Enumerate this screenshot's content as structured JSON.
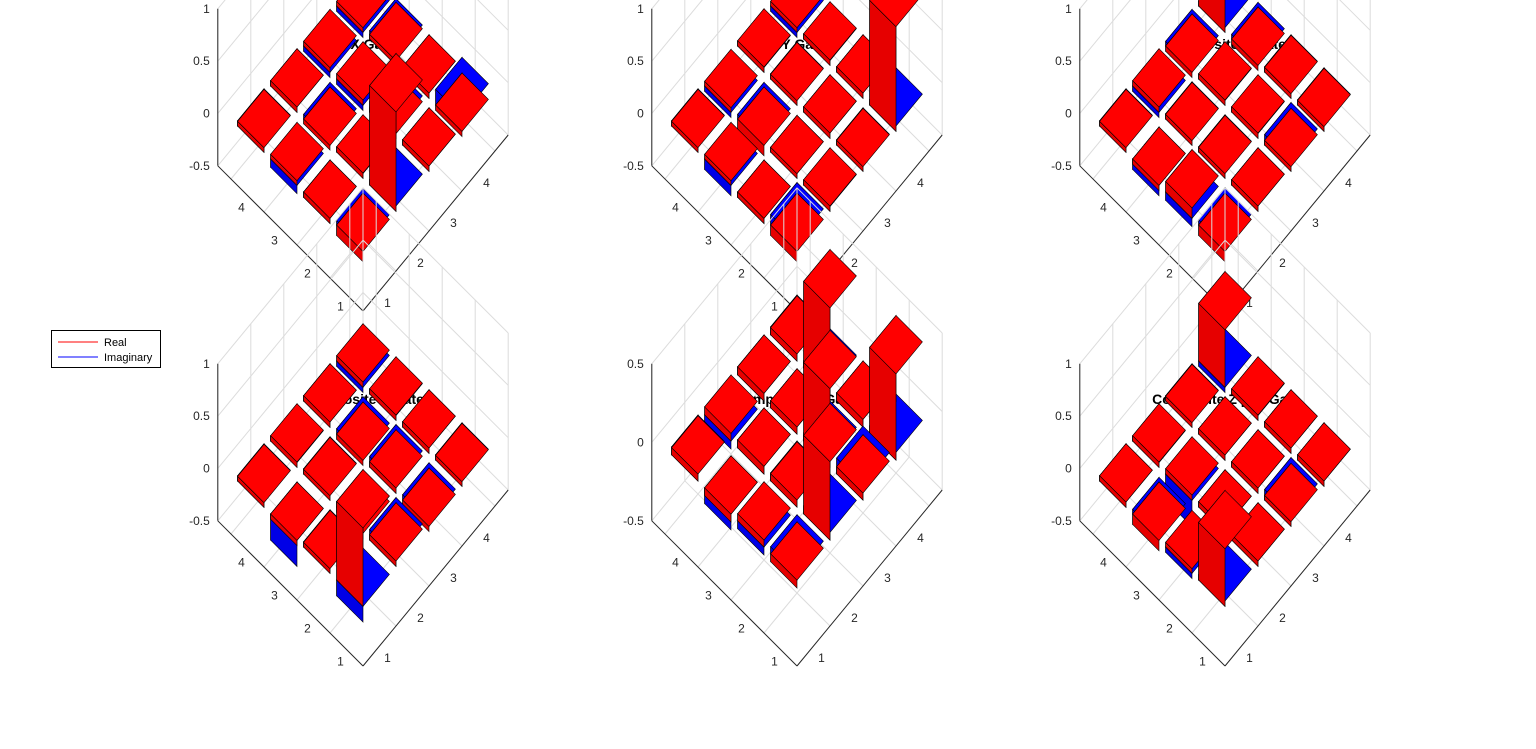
{
  "colors": {
    "real": "#ff0000",
    "imaginary": "#0000ff",
    "edge": "#000000",
    "grid": "#dcdcdc",
    "axis": "#262626"
  },
  "legend": {
    "placement": "left",
    "entries": [
      {
        "label": "Real",
        "color": "#ff0000"
      },
      {
        "label": "Imaginary",
        "color": "#0000ff"
      }
    ]
  },
  "chart_data": [
    {
      "type": "bar3d",
      "title": "Pi X Gate",
      "zlim": [
        -0.5,
        1
      ],
      "zticks": [
        "-0.5",
        "0",
        "0.5",
        "1"
      ],
      "xticks": [
        "1",
        "2",
        "3",
        "4"
      ],
      "yticks": [
        "1",
        "2",
        "3",
        "4"
      ],
      "grid": true,
      "real": [
        [
          -0.1,
          0.95,
          0.05,
          -0.05
        ],
        [
          -0.05,
          0.05,
          0.02,
          0.05
        ],
        [
          0.0,
          -0.02,
          0.05,
          0.03
        ],
        [
          0.02,
          0.05,
          0.02,
          0.02
        ]
      ],
      "imag": [
        [
          0.02,
          0.05,
          0.05,
          0.15
        ],
        [
          -0.05,
          0.02,
          0.1,
          0.05
        ],
        [
          -0.08,
          0.02,
          -0.05,
          0.08
        ],
        [
          0.05,
          0.05,
          -0.05,
          -0.05
        ]
      ]
    },
    {
      "type": "bar3d",
      "title": "Pi Y Gate",
      "zlim": [
        -0.5,
        1
      ],
      "zticks": [
        "-0.5",
        "0",
        "0.5",
        "1"
      ],
      "xticks": [
        "1",
        "2",
        "3",
        "4"
      ],
      "yticks": [
        "1",
        "2",
        "3",
        "4"
      ],
      "grid": true,
      "real": [
        [
          -0.1,
          0.05,
          0.0,
          1.0
        ],
        [
          -0.05,
          0.02,
          0.05,
          0.05
        ],
        [
          0.0,
          -0.1,
          0.0,
          0.05
        ],
        [
          0.02,
          0.0,
          0.05,
          0.02
        ]
      ],
      "imag": [
        [
          0.1,
          0.02,
          0.05,
          0.05
        ],
        [
          -0.05,
          0.02,
          0.05,
          0.05
        ],
        [
          -0.1,
          0.02,
          0.05,
          0.02
        ],
        [
          0.05,
          -0.05,
          0.02,
          -0.05
        ]
      ]
    },
    {
      "type": "bar3d",
      "title": "Composite Z Gate",
      "zlim": [
        -0.5,
        1
      ],
      "zticks": [
        "-0.5",
        "0",
        "0.5",
        "1"
      ],
      "xticks": [
        "1",
        "2",
        "3",
        "4"
      ],
      "yticks": [
        "1",
        "2",
        "3",
        "4"
      ],
      "grid": true,
      "real": [
        [
          -0.1,
          0.05,
          0.0,
          0.02
        ],
        [
          0.1,
          0.0,
          0.05,
          0.02
        ],
        [
          -0.05,
          0.02,
          0.05,
          -0.05
        ],
        [
          0.02,
          0.05,
          -0.05,
          1.0
        ]
      ],
      "imag": [
        [
          0.05,
          0.05,
          0.1,
          0.05
        ],
        [
          -0.08,
          0.05,
          0.02,
          0.05
        ],
        [
          -0.1,
          0.05,
          0.02,
          0.02
        ],
        [
          0.05,
          -0.05,
          0.02,
          0.02
        ]
      ]
    },
    {
      "type": "bar3d",
      "title": "Composite T Gate",
      "zlim": [
        -0.5,
        1
      ],
      "zticks": [
        "-0.5",
        "0",
        "0.5",
        "1"
      ],
      "xticks": [
        "1",
        "2",
        "3",
        "4"
      ],
      "yticks": [
        "1",
        "2",
        "3",
        "4"
      ],
      "grid": true,
      "real": [
        [
          0.75,
          0.05,
          -0.05,
          0.02
        ],
        [
          0.02,
          -0.05,
          0.05,
          0.05
        ],
        [
          -0.05,
          0.02,
          -0.05,
          0.05
        ],
        [
          0.02,
          0.05,
          0.05,
          0.05
        ]
      ],
      "imag": [
        [
          -0.15,
          0.1,
          0.05,
          0.05
        ],
        [
          0.05,
          0.05,
          0.1,
          0.05
        ],
        [
          -0.25,
          0.05,
          0.05,
          0.02
        ],
        [
          0.05,
          0.02,
          0.05,
          -0.05
        ]
      ]
    },
    {
      "type": "bar3d",
      "title": "Composite H Gate",
      "zlim": [
        -0.5,
        0.5
      ],
      "zticks": [
        "-0.5",
        "0",
        "0.5"
      ],
      "xticks": [
        "1",
        "2",
        "3",
        "4"
      ],
      "yticks": [
        "1",
        "2",
        "3",
        "4"
      ],
      "grid": true,
      "real": [
        [
          -0.05,
          0.5,
          0.02,
          0.55
        ],
        [
          0.02,
          0.02,
          0.5,
          0.05
        ],
        [
          -0.05,
          0.05,
          0.02,
          0.55
        ],
        [
          0.02,
          0.05,
          0.05,
          0.02
        ]
      ],
      "imag": [
        [
          0.02,
          0.05,
          0.1,
          0.05
        ],
        [
          -0.05,
          0.05,
          0.05,
          0.05
        ],
        [
          -0.1,
          0.05,
          0.02,
          0.02
        ],
        [
          0.05,
          -0.05,
          0.05,
          0.05
        ]
      ]
    },
    {
      "type": "bar3d",
      "title": "Composite Z pi/2 Gate",
      "zlim": [
        -0.5,
        1
      ],
      "zticks": [
        "-0.5",
        "0",
        "0.5",
        "1"
      ],
      "xticks": [
        "1",
        "2",
        "3",
        "4"
      ],
      "yticks": [
        "1",
        "2",
        "3",
        "4"
      ],
      "grid": true,
      "real": [
        [
          0.55,
          0.05,
          0.02,
          0.05
        ],
        [
          0.02,
          0.05,
          0.05,
          0.05
        ],
        [
          -0.1,
          0.05,
          0.05,
          0.05
        ],
        [
          0.05,
          0.05,
          0.02,
          0.55
        ]
      ],
      "imag": [
        [
          0.05,
          0.05,
          0.1,
          0.05
        ],
        [
          -0.05,
          0.05,
          0.05,
          0.05
        ],
        [
          0.02,
          -0.25,
          0.05,
          0.02
        ],
        [
          0.05,
          0.02,
          0.05,
          -0.05
        ]
      ]
    }
  ]
}
